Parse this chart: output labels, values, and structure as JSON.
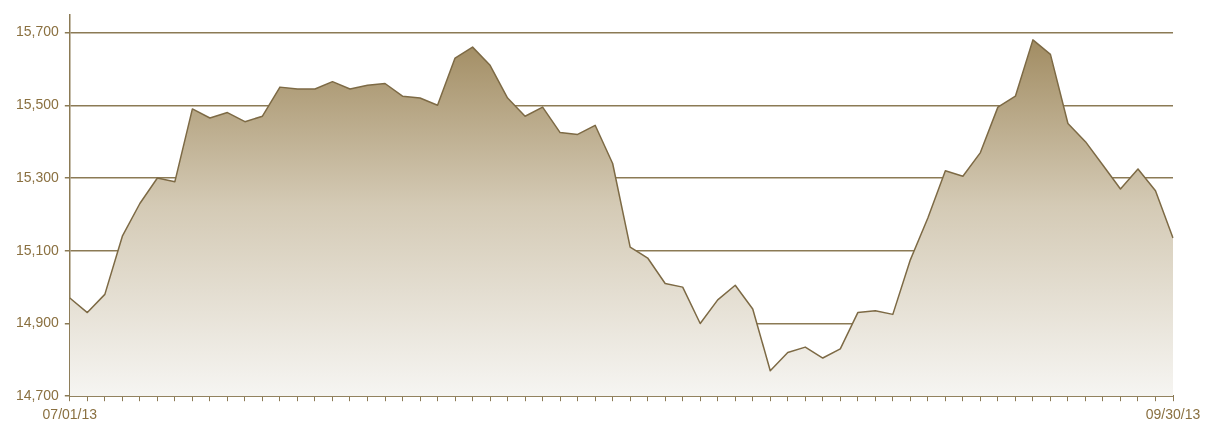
{
  "chart_data": {
    "type": "area",
    "categories": [
      "07/01/13",
      null,
      null,
      null,
      null,
      null,
      null,
      null,
      null,
      null,
      null,
      null,
      null,
      null,
      null,
      null,
      null,
      null,
      null,
      null,
      null,
      null,
      null,
      null,
      null,
      null,
      null,
      null,
      null,
      null,
      null,
      null,
      null,
      null,
      null,
      null,
      null,
      null,
      null,
      null,
      null,
      null,
      null,
      null,
      null,
      null,
      null,
      null,
      null,
      null,
      null,
      null,
      null,
      null,
      null,
      null,
      null,
      null,
      null,
      null,
      null,
      null,
      null,
      "09/30/13"
    ],
    "series": [
      {
        "color": "#7d6a45",
        "values": [
          14970,
          14930,
          14980,
          15140,
          15230,
          15300,
          15290,
          15490,
          15465,
          15480,
          15455,
          15470,
          15550,
          15545,
          15545,
          15565,
          15545,
          15555,
          15560,
          15525,
          15520,
          15500,
          15630,
          15660,
          15610,
          15520,
          15470,
          15495,
          15425,
          15420,
          15445,
          15340,
          15110,
          15080,
          15010,
          15000,
          14900,
          14965,
          15005,
          14940,
          14770,
          14820,
          14835,
          14805,
          14830,
          14930,
          14935,
          14925,
          15075,
          15190,
          15320,
          15305,
          15370,
          15495,
          15525,
          15680,
          15640,
          15450,
          15400,
          15335,
          15270,
          15325,
          15265,
          15135
        ]
      }
    ],
    "ylim": [
      14700,
      15750
    ],
    "yticks": [
      {
        "value": 14700,
        "label": "14,700"
      },
      {
        "value": 14900,
        "label": "14,900"
      },
      {
        "value": 15100,
        "label": "15,100"
      },
      {
        "value": 15300,
        "label": "15,300"
      },
      {
        "value": 15500,
        "label": "15,500"
      },
      {
        "value": 15700,
        "label": "15,700"
      }
    ],
    "grid": "y",
    "legend": false,
    "marker": "none",
    "line_style": "solid"
  }
}
